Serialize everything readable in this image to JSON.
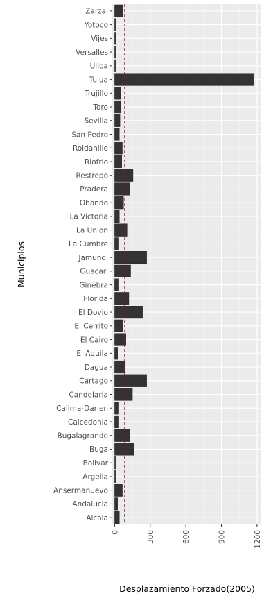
{
  "chart_data": {
    "type": "bar",
    "orientation": "horizontal",
    "xlabel": "Desplazamiento Forzado(2005)",
    "ylabel": "Municipios",
    "xlim": [
      -20,
      1230
    ],
    "xticks": [
      0,
      300,
      600,
      900,
      1200
    ],
    "xtick_labels": [
      "0",
      "300",
      "600",
      "900",
      "1200"
    ],
    "reference_line": {
      "value": 85,
      "style": "dashed",
      "color": "#8b1a1a"
    },
    "bar_color": "#333333",
    "panel_background": "#ebebeb",
    "grid": true,
    "categories": [
      "Alcala",
      "Andalucia",
      "Ansermanuevo",
      "Argelia",
      "Bolivar",
      "Buga",
      "Bugalagrande",
      "Caicedonia",
      "Calima-Darien",
      "Candelaria",
      "Cartago",
      "Dagua",
      "El Aguila",
      "El Cairo",
      "El Cerrito",
      "El Dovio",
      "Florida",
      "Ginebra",
      "Guacari",
      "Jamundi",
      "La Cumbre",
      "La Union",
      "La Victoria",
      "Obando",
      "Pradera",
      "Restrepo",
      "Riofrio",
      "Roldanillo",
      "San Pedro",
      "Sevilla",
      "Toro",
      "Trujillo",
      "Tulua",
      "Ulloa",
      "Versalles",
      "Vijes",
      "Yotoco",
      "Zarzal"
    ],
    "values": [
      40,
      25,
      65,
      3,
      3,
      165,
      125,
      30,
      30,
      150,
      270,
      90,
      25,
      95,
      70,
      235,
      120,
      30,
      135,
      270,
      30,
      105,
      40,
      75,
      125,
      155,
      60,
      65,
      40,
      45,
      50,
      50,
      1170,
      5,
      5,
      12,
      3,
      70
    ]
  }
}
